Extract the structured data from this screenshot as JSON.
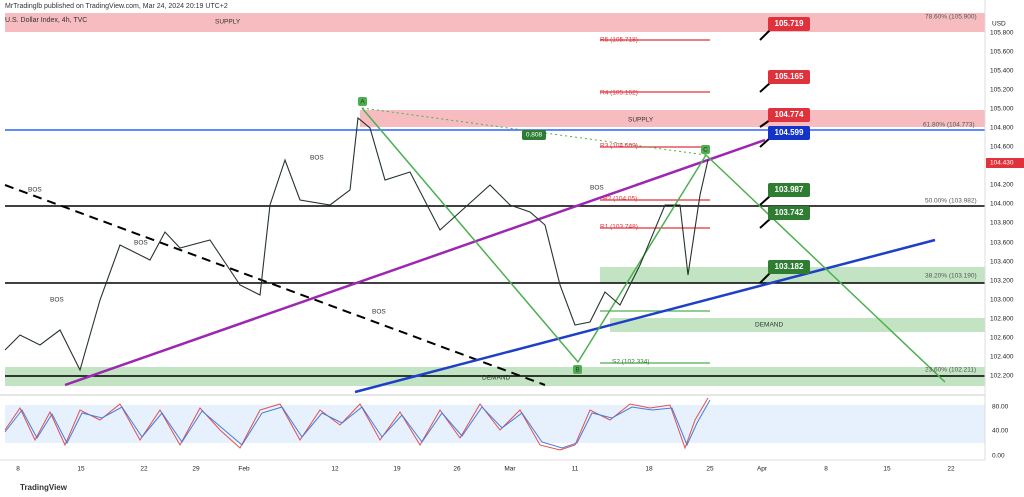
{
  "header": {
    "publisher": "MrTradinglb published on TradingView.com, Mar 24, 2024 20:19 UTC+2",
    "symbol": "U.S. Dollar Index, 4h, TVC",
    "currency": "USD"
  },
  "price_axis": [
    "105.800",
    "105.600",
    "105.400",
    "105.200",
    "105.000",
    "104.800",
    "104.600",
    "104.200",
    "104.000",
    "103.800",
    "103.600",
    "103.400",
    "103.200",
    "103.000",
    "102.800",
    "102.600",
    "102.400",
    "102.200"
  ],
  "current_price": "104.430",
  "badges": [
    "105.719",
    "105.165",
    "104.774",
    "104.599",
    "103.987",
    "103.742",
    "103.182"
  ],
  "fib_labels": [
    "78.60% (105.900)",
    "61.80% (104.773)",
    "50.00% (103.982)",
    "38.20% (103.190)",
    "23.60% (102.211)"
  ],
  "pivots": [
    "R5 (105.718)",
    "R4 (105.162)",
    "R3 (104.609)",
    "R2 (104.05)",
    "R1 (103.748)",
    "S2 (102.334)"
  ],
  "zones": [
    "SUPPLY",
    "SUPPLY",
    "DEMAND",
    "DEMAND"
  ],
  "wave_points": [
    "A",
    "B",
    "C"
  ],
  "ratio": "0.808",
  "bos": "BOS",
  "date_axis": [
    "8",
    "15",
    "22",
    "29",
    "Feb",
    "12",
    "19",
    "26",
    "Mar",
    "11",
    "18",
    "25",
    "Apr",
    "8",
    "15",
    "22"
  ],
  "oscillator_axis": [
    "80.00",
    "40.00",
    "0.00"
  ],
  "brand": "TradingView"
}
